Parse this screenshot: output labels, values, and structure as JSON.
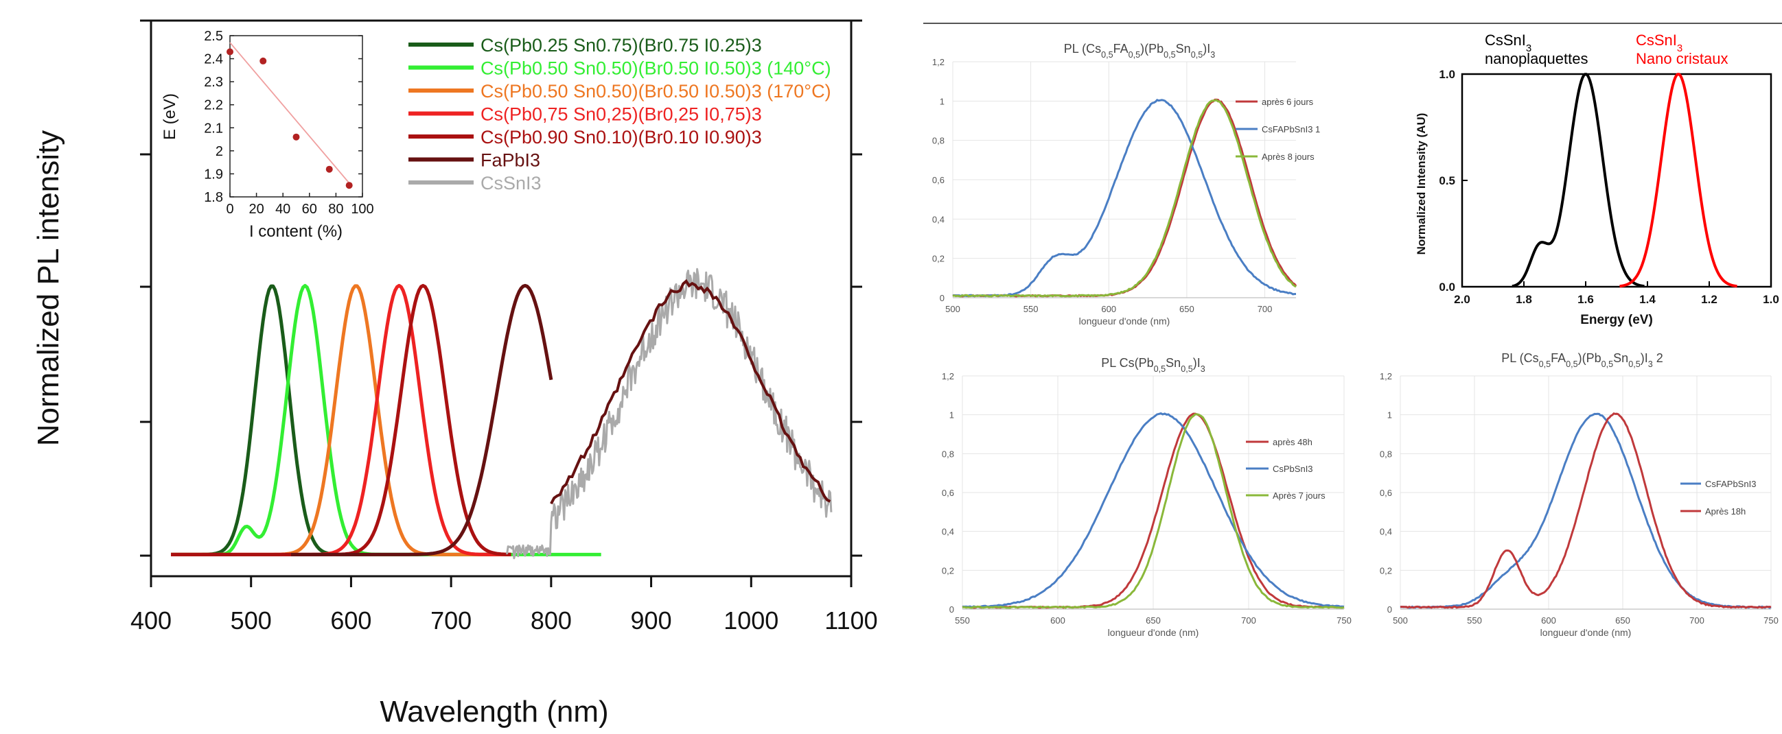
{
  "colors": {
    "dark_green": "#1a5c1a",
    "light_green": "#33ee33",
    "orange": "#ee7722",
    "red": "#ee2222",
    "crimson": "#aa1111",
    "maroon": "#661111",
    "gray": "#aaaaaa",
    "blue": "#4a7ec4",
    "excel_red": "#c0393b",
    "olive": "#8ab83a",
    "black": "#000000",
    "pure_red": "#ff0000"
  },
  "chart_data": [
    {
      "type": "line",
      "title": "",
      "xlabel": "Wavelength (nm)",
      "ylabel": "Normalized PL intensity",
      "xlim": [
        400,
        1100
      ],
      "x_ticks": [
        "400",
        "500",
        "600",
        "700",
        "800",
        "900",
        "1000",
        "1100"
      ],
      "ylim": [
        0,
        1.1
      ],
      "legend_position": "top-right",
      "series": [
        {
          "name": "Cs(Pb0.25 Sn0.75)(Br0.75 I0.25)3",
          "color": "#1a5c1a",
          "peak": 521,
          "width": 17,
          "x_range": [
            420,
            760
          ]
        },
        {
          "name": "Cs(Pb0.50 Sn0.50)(Br0.50 I0.50)3 (140°C)",
          "color": "#33ee33",
          "peak": 554,
          "width": 18,
          "x_range": [
            420,
            850
          ],
          "shoulder": [
            495,
            0.1,
            8
          ]
        },
        {
          "name": "Cs(Pb0.50 Sn0.50)(Br0.50 I0.50)3 (170°C)",
          "color": "#ee7722",
          "peak": 605,
          "width": 20,
          "x_range": [
            420,
            760
          ]
        },
        {
          "name": "Cs(Pb0,75 Sn0,25)(Br0,25 I0,75)3",
          "color": "#ee2222",
          "peak": 648,
          "width": 21,
          "x_range": [
            420,
            760
          ]
        },
        {
          "name": "Cs(Pb0.90 Sn0.10)(Br0.10 I0.90)3",
          "color": "#aa1111",
          "peak": 672,
          "width": 22,
          "x_range": [
            420,
            760
          ]
        },
        {
          "name": "FaPbI3",
          "color": "#661111",
          "peak": 774,
          "width": 28,
          "x_range": [
            540,
            800
          ]
        },
        {
          "name": "CsSnI3",
          "color": "#aaaaaa",
          "peak": 945,
          "width": 70,
          "x_range": [
            755,
            1080
          ],
          "noisy": true
        }
      ],
      "overlay": {
        "name": "",
        "color": "#661111",
        "peak": 940,
        "width": 72,
        "x_range": [
          800,
          1080
        ]
      }
    },
    {
      "type": "scatter",
      "title": "",
      "xlabel": "I content (%)",
      "ylabel": "E (eV)",
      "xlim": [
        0,
        100
      ],
      "ylim": [
        1.8,
        2.5
      ],
      "x_ticks": [
        "0",
        "20",
        "40",
        "60",
        "80",
        "100"
      ],
      "y_ticks": [
        "1.8",
        "1.9",
        "2",
        "2.1",
        "2.2",
        "2.3",
        "2.4",
        "2.5"
      ],
      "points": [
        [
          0,
          2.43
        ],
        [
          25,
          2.39
        ],
        [
          50,
          2.06
        ],
        [
          75,
          1.92
        ],
        [
          90,
          1.85
        ]
      ],
      "fit_line": [
        [
          0,
          2.47
        ],
        [
          90,
          1.86
        ]
      ]
    },
    {
      "type": "line",
      "title_parts": [
        "PL (Cs",
        "0,5",
        "FA",
        "0,5",
        ")(Pb",
        "0,5",
        "Sn",
        "0,5",
        ")I",
        "3"
      ],
      "xlabel": "longueur d'onde (nm)",
      "xlim": [
        500,
        720
      ],
      "ylim": [
        0,
        1.2
      ],
      "x_ticks": [
        "500",
        "550",
        "600",
        "650",
        "700"
      ],
      "y_ticks": [
        "0",
        "0,2",
        "0,4",
        "0,6",
        "0,8",
        "1",
        "1,2"
      ],
      "series": [
        {
          "name": "après 6 jours",
          "color": "#c0393b",
          "peak": 669,
          "width": 21
        },
        {
          "name": "CsFAPbSnI3 1",
          "color": "#4a7ec4",
          "peak": 633,
          "width": 28,
          "shoulder": [
            565,
            0.15,
            10
          ]
        },
        {
          "name": "Après 8 jours",
          "color": "#8ab83a",
          "peak": 668,
          "width": 21
        }
      ]
    },
    {
      "type": "line",
      "title_parts": [
        "CsSnI",
        "3",
        " nanoplaquettes",
        "CsSnI",
        "3",
        " Nano cristaux"
      ],
      "xlabel": "Energy (eV)",
      "ylabel": "Normalized Intensity (AU)",
      "xlim": [
        2.0,
        1.0
      ],
      "ylim": [
        0,
        1.0
      ],
      "x_ticks": [
        "2.0",
        "1.8",
        "1.6",
        "1.4",
        "1.2",
        "1.0"
      ],
      "y_ticks": [
        "0.0",
        "0.5",
        "1.0"
      ],
      "series": [
        {
          "name": "CsSnI3 nanoplaquettes",
          "color": "#000000",
          "peak": 1.6,
          "width": 0.055,
          "shoulder": [
            1.75,
            0.18,
            0.03
          ]
        },
        {
          "name": "CsSnI3 Nano cristaux",
          "color": "#ff0000",
          "peak": 1.3,
          "width": 0.055
        }
      ]
    },
    {
      "type": "line",
      "title_parts": [
        "PL Cs(Pb",
        "0,5",
        "Sn",
        "0,5",
        ")I",
        "3"
      ],
      "xlabel": "longueur d'onde (nm)",
      "xlim": [
        550,
        750
      ],
      "ylim": [
        0,
        1.2
      ],
      "x_ticks": [
        "550",
        "600",
        "650",
        "700",
        "750"
      ],
      "y_ticks": [
        "0",
        "0,2",
        "0,4",
        "0,6",
        "0,8",
        "1",
        "1,2"
      ],
      "series": [
        {
          "name": "après 48h",
          "color": "#c0393b",
          "peak": 672,
          "width": 17
        },
        {
          "name": "CsPbSnI3",
          "color": "#4a7ec4",
          "peak": 655,
          "width": 28
        },
        {
          "name": "Après 7 jours",
          "color": "#8ab83a",
          "peak": 673,
          "width": 15
        }
      ]
    },
    {
      "type": "line",
      "title_parts": [
        "PL (Cs",
        "0,5",
        "FA",
        "0,5",
        ")(Pb",
        "0,5",
        "Sn",
        "0,5",
        ")I",
        "3",
        " 2"
      ],
      "xlabel": "longueur d'onde (nm)",
      "xlim": [
        500,
        750
      ],
      "ylim": [
        0,
        1.2
      ],
      "x_ticks": [
        "500",
        "550",
        "600",
        "650",
        "700",
        "750"
      ],
      "y_ticks": [
        "0",
        "0,2",
        "0,4",
        "0,6",
        "0,8",
        "1",
        "1,2"
      ],
      "series": [
        {
          "name": "CsFAPbSnI3",
          "color": "#4a7ec4",
          "peak": 632,
          "width": 27,
          "shoulder": [
            572,
            0.1,
            14
          ]
        },
        {
          "name": "Après 18h",
          "color": "#c0393b",
          "peak": 645,
          "width": 21,
          "shoulder": [
            572,
            0.29,
            9
          ]
        }
      ]
    }
  ]
}
